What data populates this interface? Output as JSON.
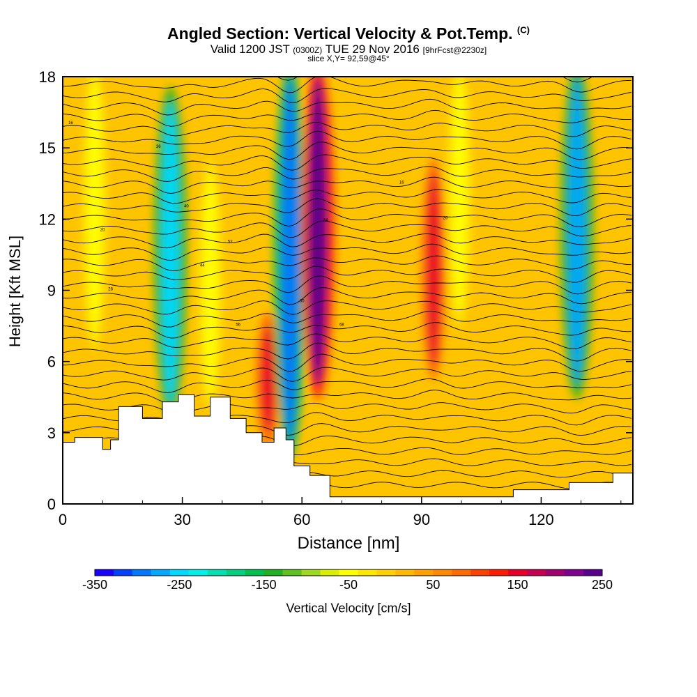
{
  "chart_data": {
    "type": "heatmap",
    "title": "Angled Section: Vertical Velocity & Pot.Temp.",
    "title_tag": "(C)",
    "subtitle": {
      "pre": "Valid 1200 JST",
      "utc": "(0300Z)",
      "date": "TUE 29 Nov 2016",
      "fcst": "[9hrFcst@2230z]"
    },
    "slice": "slice X,Y= 92,59@45°",
    "xlabel": "Distance [nm]",
    "ylabel": "Height [Kft MSL]",
    "xlim": [
      0,
      143
    ],
    "ylim": [
      0,
      18
    ],
    "xticks": [
      "0",
      "30",
      "60",
      "90",
      "120"
    ],
    "xtick_values": [
      0,
      30,
      60,
      90,
      120
    ],
    "yticks": [
      "0",
      "3",
      "6",
      "9",
      "12",
      "15",
      "18"
    ],
    "ytick_values": [
      0,
      3,
      6,
      9,
      12,
      15,
      18
    ],
    "grid": false,
    "colorbar": {
      "label": "Vertical Velocity [cm/s]",
      "range": [
        -350,
        250
      ],
      "tick_labels": [
        "-350",
        "-250",
        "-150",
        "-50",
        "50",
        "150",
        "250"
      ],
      "tick_values": [
        -350,
        -250,
        -150,
        -50,
        50,
        150,
        250
      ],
      "colors": [
        "#1a00ff",
        "#0040ff",
        "#0078ff",
        "#00a8ff",
        "#00d8ff",
        "#00f0e8",
        "#00e0b0",
        "#00d080",
        "#00c050",
        "#20b020",
        "#60c020",
        "#a0d820",
        "#d8f000",
        "#ffff00",
        "#ffe800",
        "#ffd000",
        "#ffb800",
        "#ffa000",
        "#ff8800",
        "#ff6a00",
        "#ff4000",
        "#ff1a00",
        "#e8002a",
        "#c80050",
        "#a00070",
        "#800090",
        "#5a0090"
      ]
    },
    "updraft_columns": [
      {
        "x": 8,
        "y_top": 18,
        "y_bottom": 7,
        "value": -40
      },
      {
        "x": 27,
        "y_top": 17,
        "y_bottom": 4.2,
        "value": -260
      },
      {
        "x": 37,
        "y_top": 14,
        "y_bottom": 4.5,
        "value": -50
      },
      {
        "x": 51.5,
        "y_top": 7.5,
        "y_bottom": 3,
        "value": 150
      },
      {
        "x": 57,
        "y_top": 18,
        "y_bottom": 2.5,
        "value": -300
      },
      {
        "x": 64,
        "y_top": 18,
        "y_bottom": 5,
        "value": 230
      },
      {
        "x": 93,
        "y_top": 14,
        "y_bottom": 5.8,
        "value": 150
      },
      {
        "x": 99.5,
        "y_top": 18,
        "y_bottom": 8,
        "value": -50
      },
      {
        "x": 129,
        "y_top": 18,
        "y_bottom": 5,
        "value": -270
      }
    ],
    "contour_labels": [
      "16",
      "20",
      "28",
      "36",
      "40",
      "44",
      "52",
      "56",
      "60",
      "64",
      "68"
    ],
    "terrain": [
      {
        "x": 0,
        "y": 2.6
      },
      {
        "x": 3,
        "y": 2.8
      },
      {
        "x": 10,
        "y": 2.3
      },
      {
        "x": 12,
        "y": 2.7
      },
      {
        "x": 14,
        "y": 4.1
      },
      {
        "x": 20,
        "y": 3.6
      },
      {
        "x": 25,
        "y": 4.3
      },
      {
        "x": 29,
        "y": 4.6
      },
      {
        "x": 33,
        "y": 3.7
      },
      {
        "x": 37,
        "y": 4.5
      },
      {
        "x": 42,
        "y": 3.6
      },
      {
        "x": 46,
        "y": 3.0
      },
      {
        "x": 50,
        "y": 2.6
      },
      {
        "x": 53,
        "y": 3.2
      },
      {
        "x": 56,
        "y": 2.7
      },
      {
        "x": 58,
        "y": 1.6
      },
      {
        "x": 62,
        "y": 1.2
      },
      {
        "x": 67,
        "y": 0.3
      },
      {
        "x": 78,
        "y": 0.3
      },
      {
        "x": 96,
        "y": 0.3
      },
      {
        "x": 113,
        "y": 0.6
      },
      {
        "x": 127,
        "y": 0.9
      },
      {
        "x": 138,
        "y": 1.3
      },
      {
        "x": 143,
        "y": 1.3
      }
    ]
  }
}
